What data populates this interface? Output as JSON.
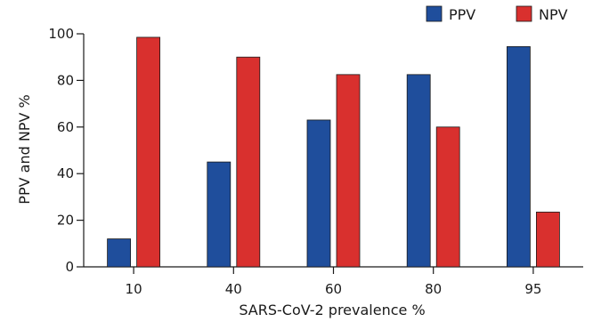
{
  "chart_data": {
    "type": "bar",
    "categories": [
      "10",
      "40",
      "60",
      "80",
      "95"
    ],
    "series": [
      {
        "name": "PPV",
        "color": "#1f4e9c",
        "values": [
          12,
          45,
          63,
          82.5,
          94.5
        ]
      },
      {
        "name": "NPV",
        "color": "#d9302e",
        "values": [
          98.5,
          90,
          82.5,
          60,
          23.5
        ]
      }
    ],
    "xlabel": "SARS-CoV-2 prevalence %",
    "ylabel": "PPV and NPV %",
    "ylim": [
      0,
      100
    ],
    "yticks": [
      0,
      20,
      40,
      60,
      80,
      100
    ],
    "grid": false,
    "legend": "top-right"
  }
}
